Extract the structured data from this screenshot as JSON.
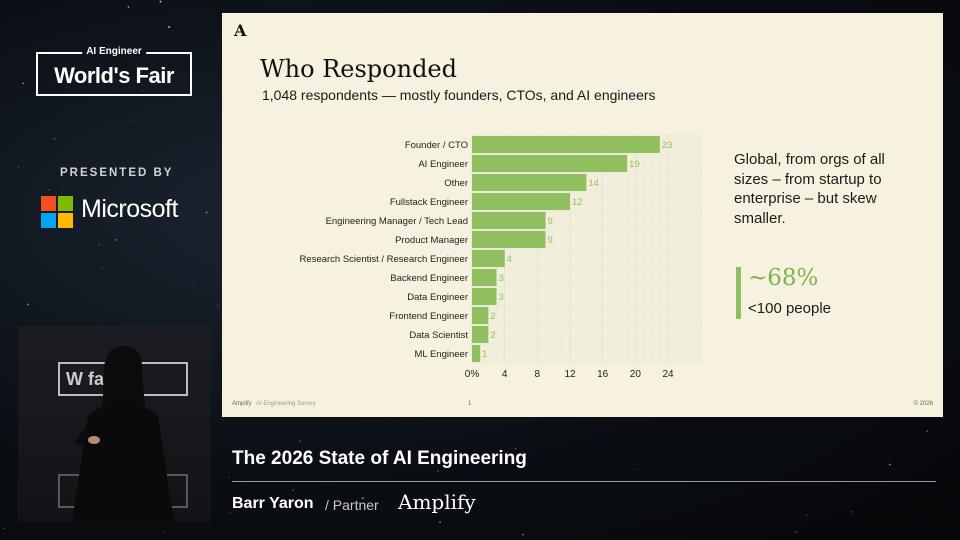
{
  "branding": {
    "event_small": "AI Engineer",
    "event_big": "World's Fair",
    "presented_by": "PRESENTED BY",
    "sponsor": "Microsoft",
    "ms_colors": [
      "#f25022",
      "#7fba00",
      "#00a4ef",
      "#ffb900"
    ]
  },
  "video": {
    "sign_text": "W   fair"
  },
  "slide": {
    "logo": "A",
    "title": "Who Responded",
    "subtitle": "1,048 respondents — mostly founders, CTOs, and AI engineers",
    "side_text": "Global, from orgs of all sizes – from startup to enterprise – but skew smaller.",
    "stat_big": "~68%",
    "stat_small": "<100 people",
    "footer_brand": "Amplify",
    "footer_note": "AI Engineering Survey",
    "page": "1",
    "copyright": "© 2026",
    "accent": "#8fbf5e"
  },
  "chart_data": {
    "type": "bar",
    "orientation": "horizontal",
    "categories": [
      "Founder / CTO",
      "AI Engineer",
      "Other",
      "Fullstack Engineer",
      "Engineering Manager / Tech Lead",
      "Product Manager",
      "Research Scientist / Research Engineer",
      "Backend Engineer",
      "Data Engineer",
      "Frontend Engineer",
      "Data Scientist",
      "ML Engineer"
    ],
    "values": [
      23,
      19,
      14,
      12,
      9,
      9,
      4,
      3,
      3,
      2,
      2,
      1
    ],
    "value_labels": [
      "23",
      "19",
      "14",
      "12",
      "9",
      "9",
      "4",
      "3",
      "3",
      "2",
      "2",
      "1"
    ],
    "xticks": [
      "0%",
      "4",
      "8",
      "12",
      "16",
      "20",
      "24"
    ],
    "xlim": [
      0,
      24
    ],
    "grid": true,
    "bar_color": "#8fbf5e",
    "label_color": "#8fbf5e"
  },
  "lower_third": {
    "title": "The 2026 State of AI Engineering",
    "speaker": "Barr Yaron",
    "role": "/ Partner",
    "company": "Amplify"
  }
}
